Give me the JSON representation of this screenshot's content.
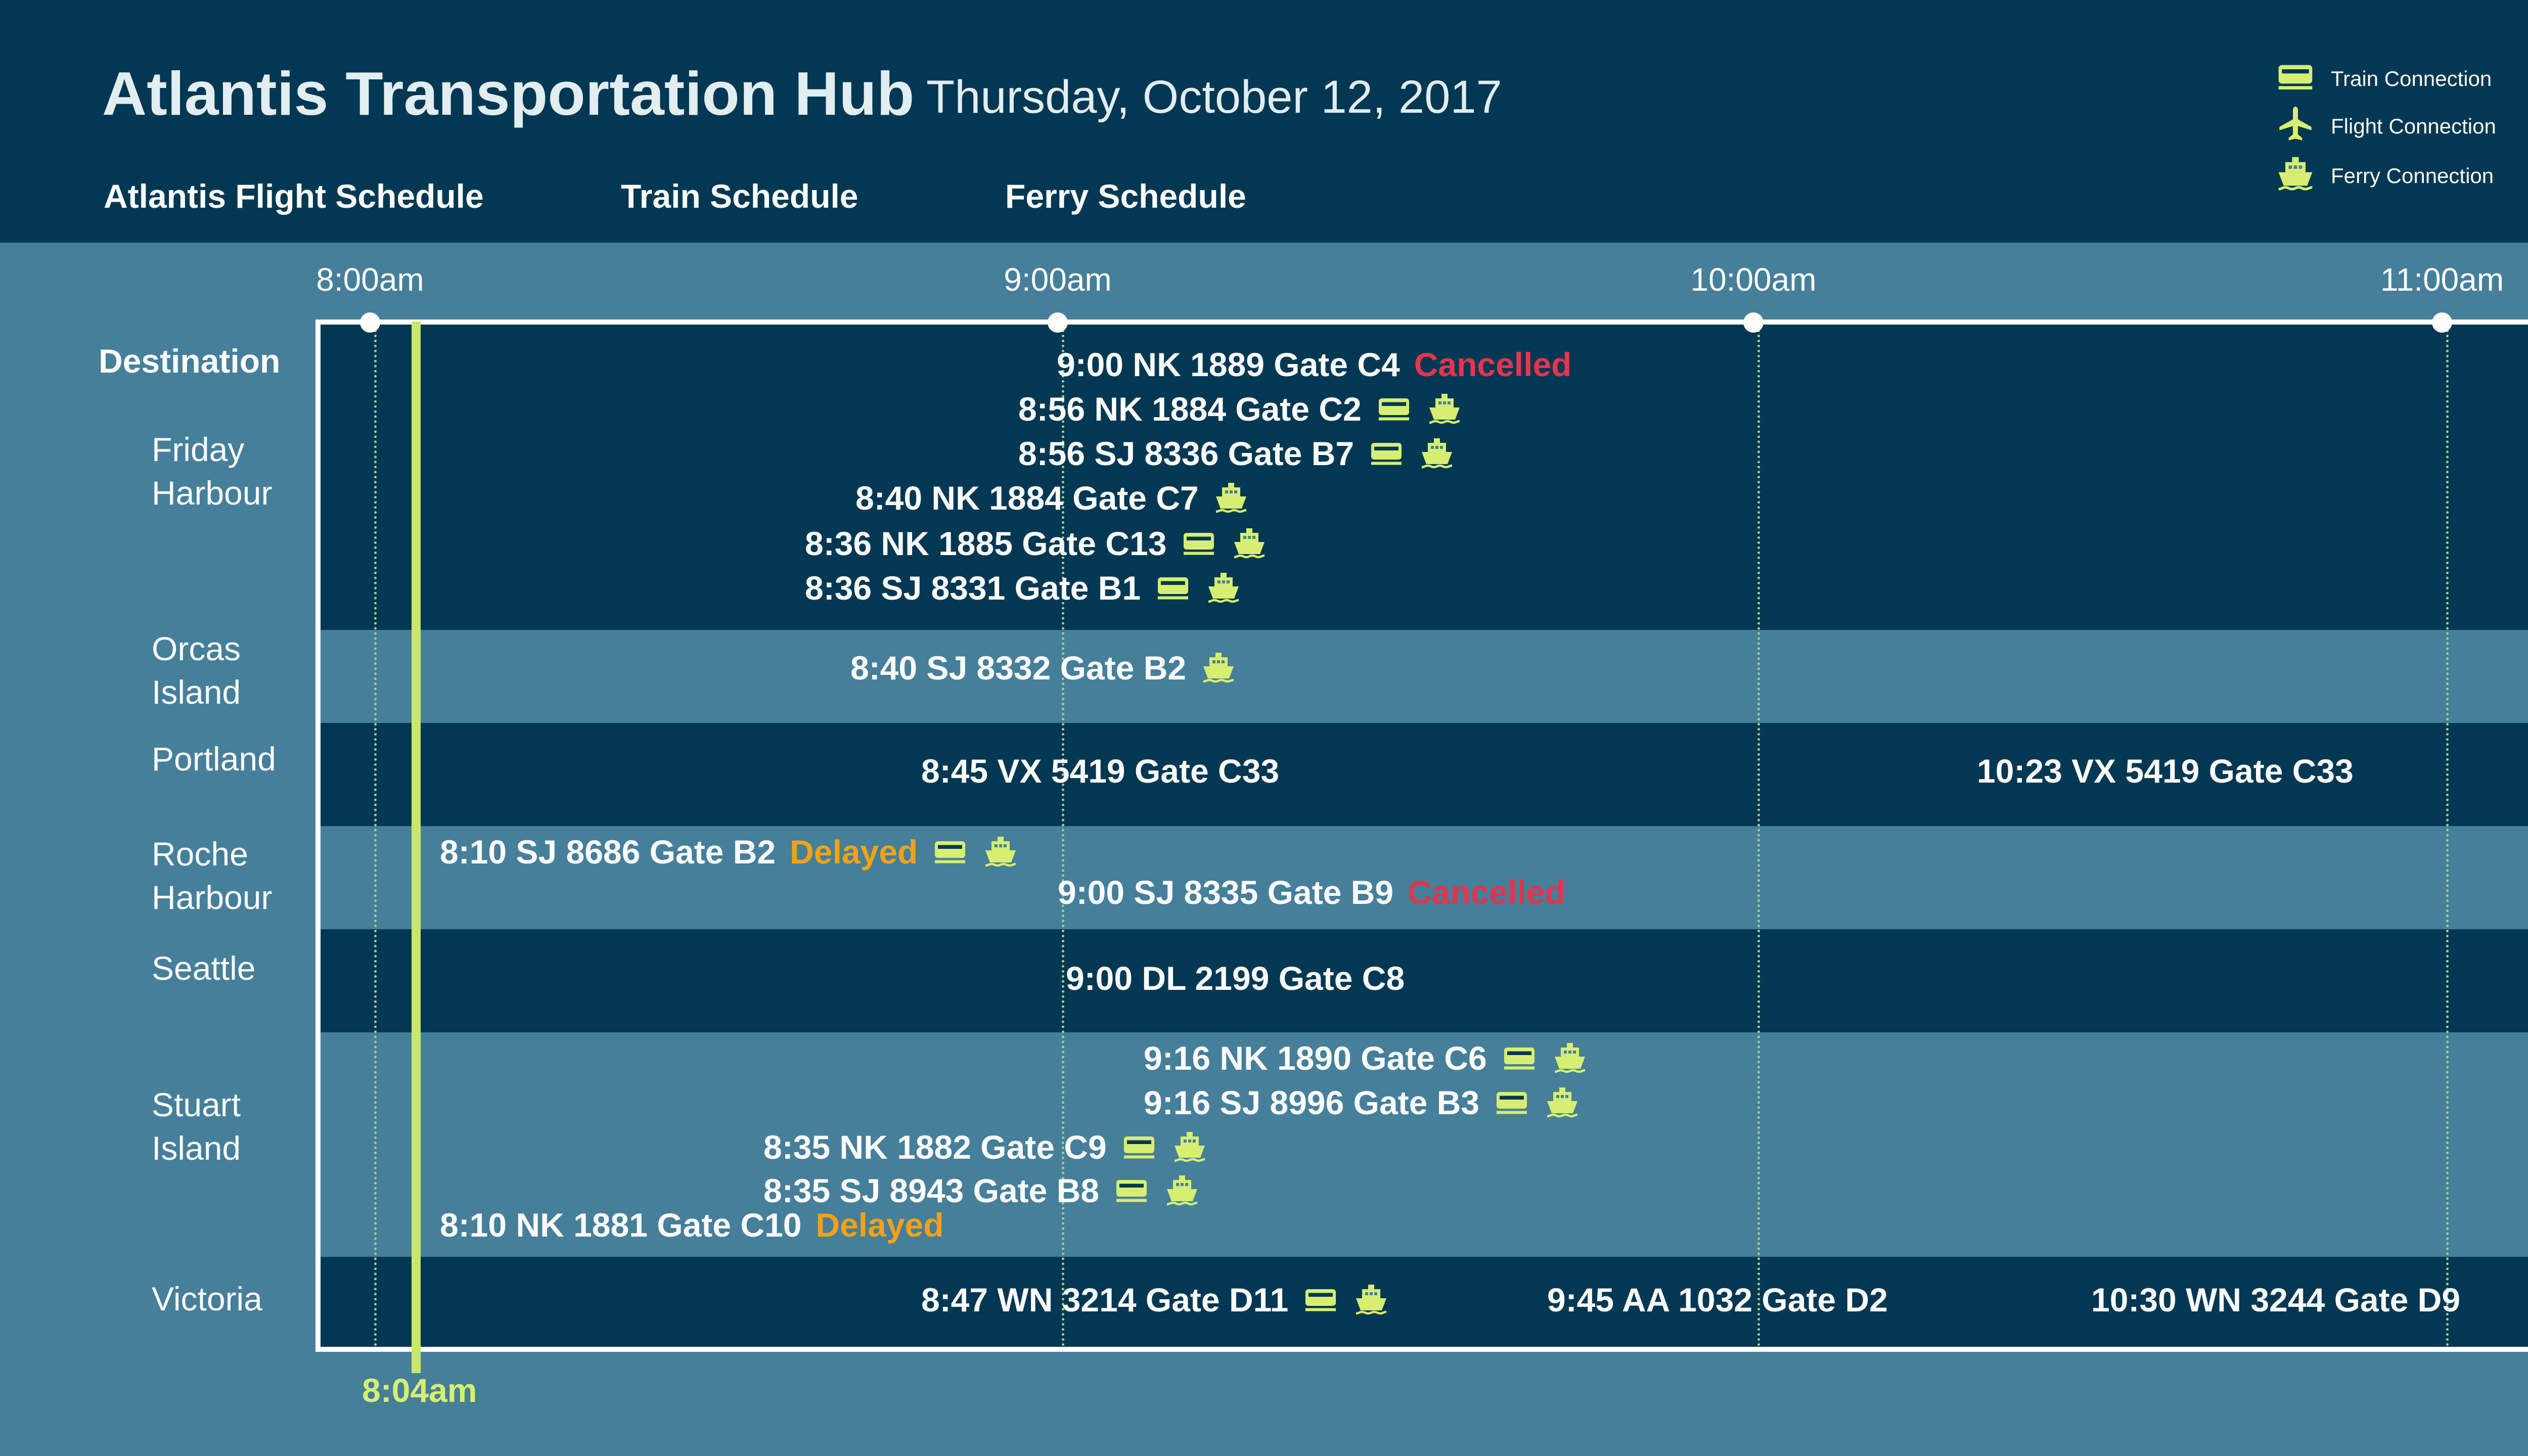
{
  "header": {
    "title": "Atlantis Transportation Hub",
    "date": "Thursday, October 12, 2017",
    "tabs": [
      {
        "label": "Atlantis Flight Schedule"
      },
      {
        "label": "Train Schedule"
      },
      {
        "label": "Ferry Schedule"
      }
    ]
  },
  "legend": [
    {
      "label": "Train Connection",
      "icon": "train-icon"
    },
    {
      "label": "Flight Connection",
      "icon": "airplane-icon"
    },
    {
      "label": "Ferry Connection",
      "icon": "ferry-icon"
    }
  ],
  "colors": {
    "header_bg": "#003851",
    "dark_band": "#003851",
    "light_band": "#457f99",
    "accent": "#c8e668",
    "cancelled": "#e4344f",
    "delayed": "#f2a217"
  },
  "timeline": {
    "start": "8:00am",
    "end": "11:00am",
    "ticks": [
      "8:00am",
      "9:00am",
      "10:00am",
      "11:00am"
    ],
    "current_time": "8:04am",
    "column_header": "Destination"
  },
  "destinations": [
    {
      "name": "Friday\nHarbour",
      "flights": [
        {
          "label": "9:00 NK 1889 Gate C4",
          "status": "Cancelled",
          "connections": []
        },
        {
          "label": "8:56 NK 1884 Gate C2",
          "status": "",
          "connections": [
            "train",
            "ferry"
          ]
        },
        {
          "label": "8:56 SJ 8336 Gate B7",
          "status": "",
          "connections": [
            "train",
            "ferry"
          ]
        },
        {
          "label": "8:40 NK 1884 Gate C7",
          "status": "",
          "connections": [
            "ferry"
          ]
        },
        {
          "label": "8:36 NK 1885 Gate C13",
          "status": "",
          "connections": [
            "train",
            "ferry"
          ]
        },
        {
          "label": "8:36 SJ 8331 Gate B1",
          "status": "",
          "connections": [
            "train",
            "ferry"
          ]
        }
      ]
    },
    {
      "name": "Orcas\nIsland",
      "flights": [
        {
          "label": "8:40 SJ 8332 Gate B2",
          "status": "",
          "connections": [
            "ferry"
          ]
        }
      ]
    },
    {
      "name": "Portland",
      "flights": [
        {
          "label": "8:45 VX 5419 Gate C33",
          "status": "",
          "connections": []
        },
        {
          "label": "10:23 VX 5419 Gate C33",
          "status": "",
          "connections": []
        }
      ]
    },
    {
      "name": "Roche\nHarbour",
      "flights": [
        {
          "label": "8:10 SJ 8686 Gate B2",
          "status": "Delayed",
          "connections": [
            "train",
            "ferry"
          ]
        },
        {
          "label": "9:00 SJ 8335 Gate B9",
          "status": "Cancelled",
          "connections": []
        }
      ]
    },
    {
      "name": "Seattle",
      "flights": [
        {
          "label": "9:00 DL 2199 Gate C8",
          "status": "",
          "connections": []
        }
      ]
    },
    {
      "name": "Stuart\nIsland",
      "flights": [
        {
          "label": "9:16 NK 1890 Gate C6",
          "status": "",
          "connections": [
            "train",
            "ferry"
          ]
        },
        {
          "label": "9:16 SJ 8996 Gate B3",
          "status": "",
          "connections": [
            "train",
            "ferry"
          ]
        },
        {
          "label": "8:35 NK 1882 Gate C9",
          "status": "",
          "connections": [
            "train",
            "ferry"
          ]
        },
        {
          "label": "8:35 SJ 8943 Gate B8",
          "status": "",
          "connections": [
            "train",
            "ferry"
          ]
        },
        {
          "label": "8:10 NK 1881 Gate C10",
          "status": "Delayed",
          "connections": []
        }
      ]
    },
    {
      "name": "Victoria",
      "flights": [
        {
          "label": "8:47 WN 3214 Gate D11",
          "status": "",
          "connections": [
            "train",
            "ferry"
          ]
        },
        {
          "label": "9:45 AA 1032 Gate D2",
          "status": "",
          "connections": []
        },
        {
          "label": "10:30 WN 3244 Gate D9",
          "status": "",
          "connections": []
        }
      ]
    }
  ]
}
